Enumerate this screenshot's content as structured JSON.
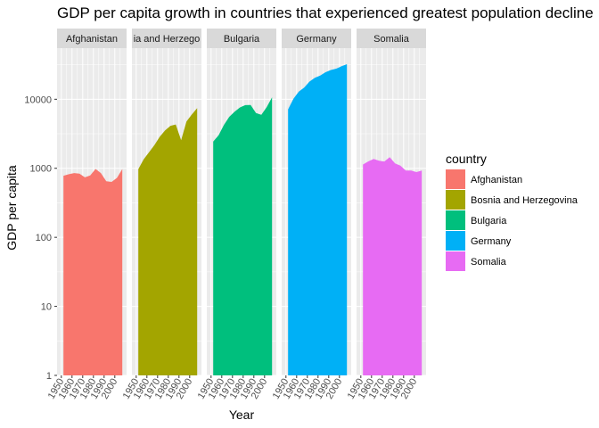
{
  "chart_data": {
    "type": "area",
    "title": "GDP per capita growth in countries that experienced greatest population decline",
    "xlabel": "Year",
    "ylabel": "GDP per capita",
    "y_scale": "log10",
    "ylim": [
      1,
      55000
    ],
    "y_ticks": [
      1,
      10,
      100,
      1000,
      10000
    ],
    "y_tick_labels": [
      "1",
      "10",
      "100",
      "1000",
      "10000"
    ],
    "xlim": [
      1946,
      2011
    ],
    "x_ticks": [
      1950,
      1960,
      1970,
      1980,
      1990,
      2000
    ],
    "x_tick_labels": [
      "1950",
      "1960",
      "1970",
      "1980",
      "1990",
      "2000"
    ],
    "grid": true,
    "facet_by": "country",
    "legend": {
      "title": "country",
      "position": "right"
    },
    "x": [
      1952,
      1957,
      1962,
      1967,
      1972,
      1977,
      1982,
      1987,
      1992,
      1997,
      2002,
      2007
    ],
    "series": [
      {
        "name": "Afghanistan",
        "color": "#F8766D",
        "strip_label": "Afghanistan",
        "values": [
          779.4,
          820.9,
          853.1,
          836.2,
          740.0,
          786.1,
          978.0,
          852.4,
          649.3,
          635.3,
          726.7,
          974.6
        ]
      },
      {
        "name": "Bosnia and Herzegovina",
        "color": "#A3A500",
        "strip_label": "ia and Herzego",
        "values": [
          973.5,
          1353.9,
          1709.7,
          2172.4,
          2860.2,
          3528.5,
          4126.6,
          4314.1,
          2546.8,
          4766.4,
          6018.0,
          7446.3
        ]
      },
      {
        "name": "Bulgaria",
        "color": "#00BF7D",
        "strip_label": "Bulgaria",
        "values": [
          2444.3,
          3008.7,
          4254.3,
          5577.0,
          6597.5,
          7612.2,
          8224.2,
          8239.9,
          6302.6,
          5970.4,
          7696.8,
          10680.8
        ]
      },
      {
        "name": "Germany",
        "color": "#00B0F6",
        "strip_label": "Germany",
        "values": [
          7144.1,
          10187.8,
          12902.5,
          14745.6,
          18016.2,
          20512.9,
          22031.5,
          24639.2,
          26505.3,
          27788.9,
          30035.8,
          32170.4
        ]
      },
      {
        "name": "Somalia",
        "color": "#E76BF3",
        "strip_label": "Somalia",
        "values": [
          1135.7,
          1258.1,
          1369.5,
          1284.7,
          1254.6,
          1450.4,
          1176.8,
          1093.2,
          926.9,
          930.6,
          882.1,
          926.1
        ]
      }
    ]
  }
}
